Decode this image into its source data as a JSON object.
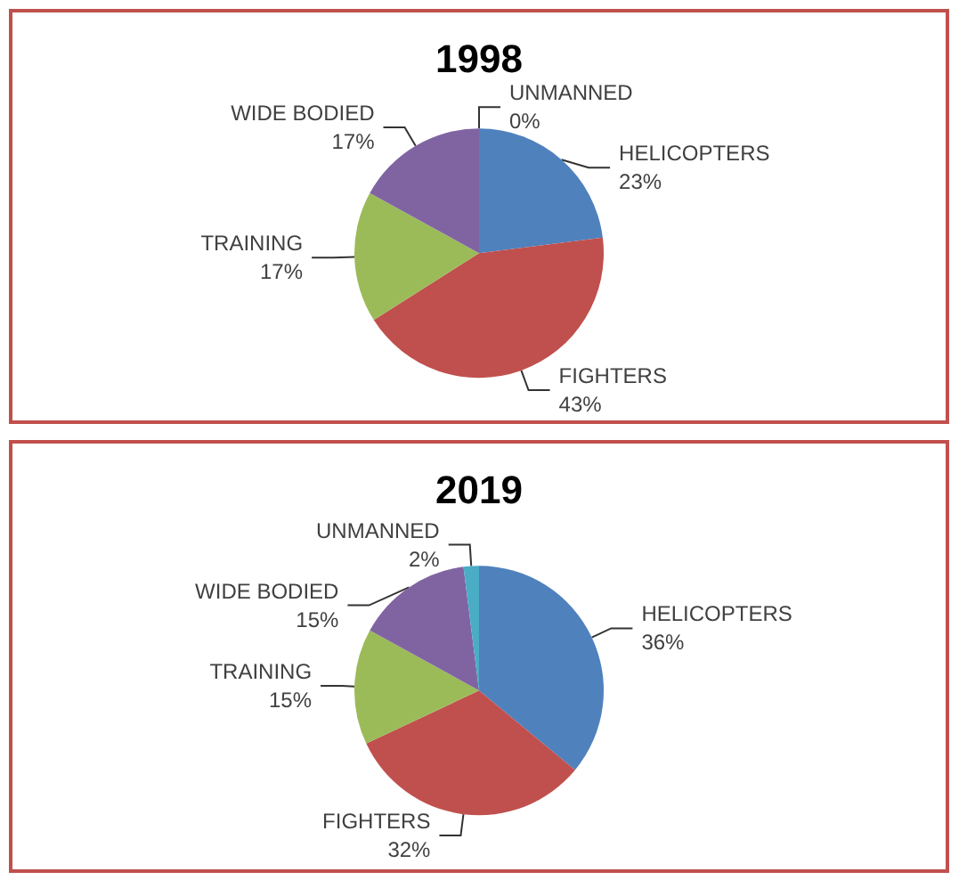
{
  "chart_data": [
    {
      "type": "pie",
      "title": "1998",
      "categories": [
        "HELICOPTERS",
        "FIGHTERS",
        "TRAINING",
        "WIDE BODIED",
        "UNMANNED"
      ],
      "values": [
        23,
        43,
        17,
        17,
        0
      ],
      "colors": [
        "#4f81bd",
        "#c0504d",
        "#9bbb59",
        "#8064a2",
        "#4bacc6"
      ],
      "value_labels": [
        "23%",
        "43%",
        "17%",
        "17%",
        "0%"
      ]
    },
    {
      "type": "pie",
      "title": "2019",
      "categories": [
        "HELICOPTERS",
        "FIGHTERS",
        "TRAINING",
        "WIDE BODIED",
        "UNMANNED"
      ],
      "values": [
        36,
        32,
        15,
        15,
        2
      ],
      "colors": [
        "#4f81bd",
        "#c0504d",
        "#9bbb59",
        "#8064a2",
        "#4bacc6"
      ],
      "value_labels": [
        "36%",
        "32%",
        "15%",
        "15%",
        "2%"
      ]
    }
  ]
}
